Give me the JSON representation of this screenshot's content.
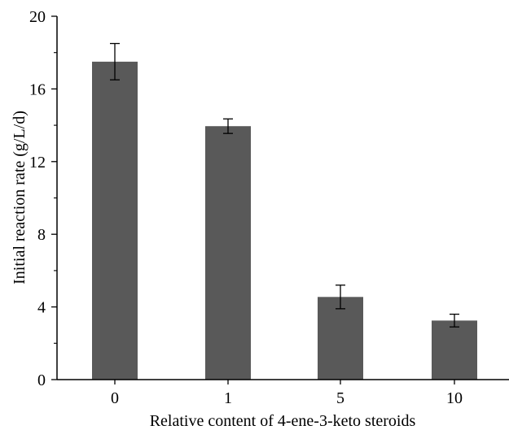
{
  "chart_data": {
    "type": "bar",
    "categories": [
      "0",
      "1",
      "5",
      "10"
    ],
    "values": [
      17.5,
      13.95,
      4.55,
      3.25
    ],
    "errors": [
      1.0,
      0.4,
      0.65,
      0.35
    ],
    "xlabel": "Relative content of 4-ene-3-keto steroids",
    "ylabel": "Initial reaction rate (g/L/d)",
    "ylim": [
      0,
      20
    ],
    "yticks": [
      "0",
      "4",
      "8",
      "12",
      "16",
      "20"
    ],
    "grid": false,
    "legend": "none",
    "bar_color": "#595959"
  }
}
